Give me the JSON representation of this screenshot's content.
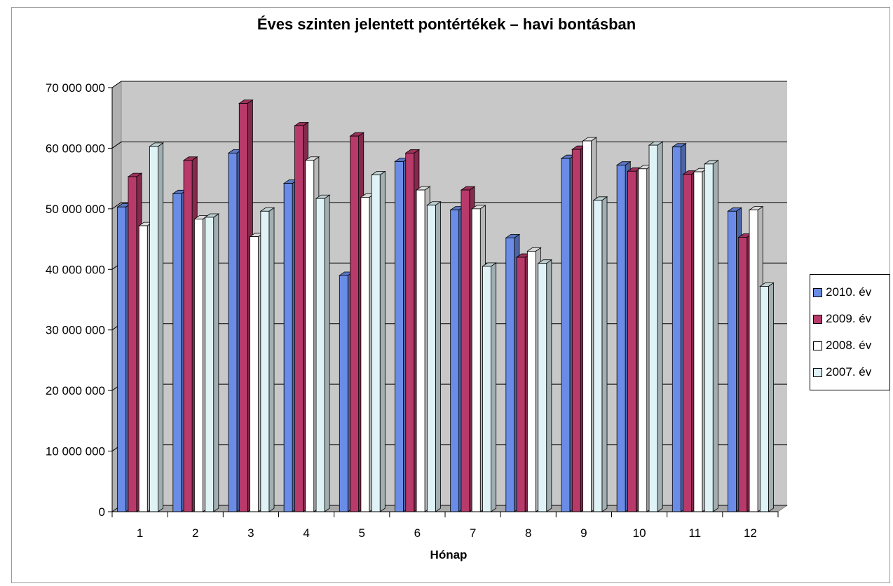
{
  "chart_data": {
    "type": "bar",
    "title": "Éves szinten jelentett pontértékek – havi bontásban",
    "xlabel": "Hónap",
    "ylabel": "",
    "ylim": [
      0,
      70000000
    ],
    "yticks": [
      "0",
      "10 000 000",
      "20 000 000",
      "30 000 000",
      "40 000 000",
      "50 000 000",
      "60 000 000",
      "70 000 000"
    ],
    "categories": [
      "1",
      "2",
      "3",
      "4",
      "5",
      "6",
      "7",
      "8",
      "9",
      "10",
      "11",
      "12"
    ],
    "series": [
      {
        "name": "2010. év",
        "color": "#6a8ce6",
        "values": [
          50300000,
          52500000,
          59200000,
          54200000,
          39000000,
          57800000,
          49800000,
          45200000,
          58300000,
          57200000,
          60200000,
          49600000
        ]
      },
      {
        "name": "2009. év",
        "color": "#b83a6a",
        "values": [
          55300000,
          58000000,
          67400000,
          63700000,
          62000000,
          59200000,
          53100000,
          42000000,
          59800000,
          56200000,
          55700000,
          45300000
        ]
      },
      {
        "name": "2008. év",
        "color": "#ffffff",
        "values": [
          47200000,
          48300000,
          45400000,
          58000000,
          51900000,
          53100000,
          50000000,
          43000000,
          61200000,
          56600000,
          56100000,
          49800000
        ]
      },
      {
        "name": "2007. év",
        "color": "#dff3f7",
        "values": [
          60300000,
          48600000,
          49600000,
          51700000,
          55600000,
          50600000,
          40500000,
          41000000,
          51400000,
          60500000,
          57400000,
          37200000
        ]
      }
    ],
    "grid": true,
    "legend": "right",
    "style": "3d-clustered-column"
  }
}
